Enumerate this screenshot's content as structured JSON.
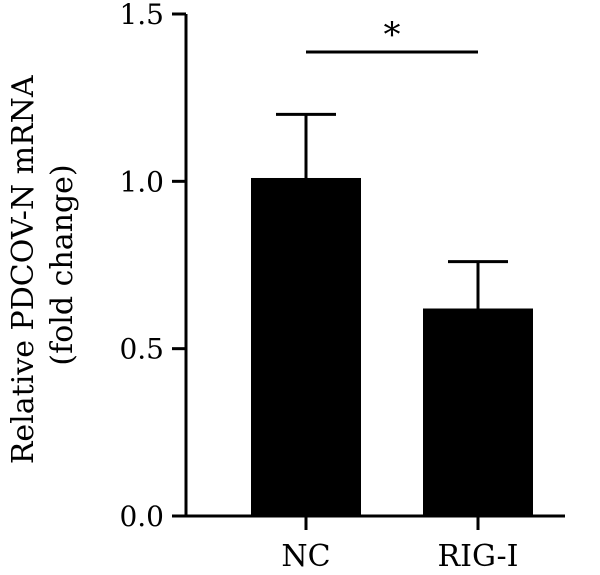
{
  "chart_data": {
    "type": "bar",
    "categories": [
      "NC",
      "RIG-I"
    ],
    "series": [
      {
        "values": [
          1.01,
          0.62
        ],
        "error": [
          0.19,
          0.14
        ],
        "color": "#000000"
      }
    ],
    "ylabel_lines": [
      "Relative PDCOV-N mRNA",
      "(fold change)"
    ],
    "ylim": [
      0,
      1.5
    ],
    "yticks": [
      "0.0",
      "0.5",
      "1.0",
      "1.5"
    ],
    "ytick_values": [
      0,
      0.5,
      1.0,
      1.5
    ],
    "significance": {
      "between": [
        "NC",
        "RIG-I"
      ],
      "label": "*"
    },
    "grid": false,
    "legend": "none"
  }
}
